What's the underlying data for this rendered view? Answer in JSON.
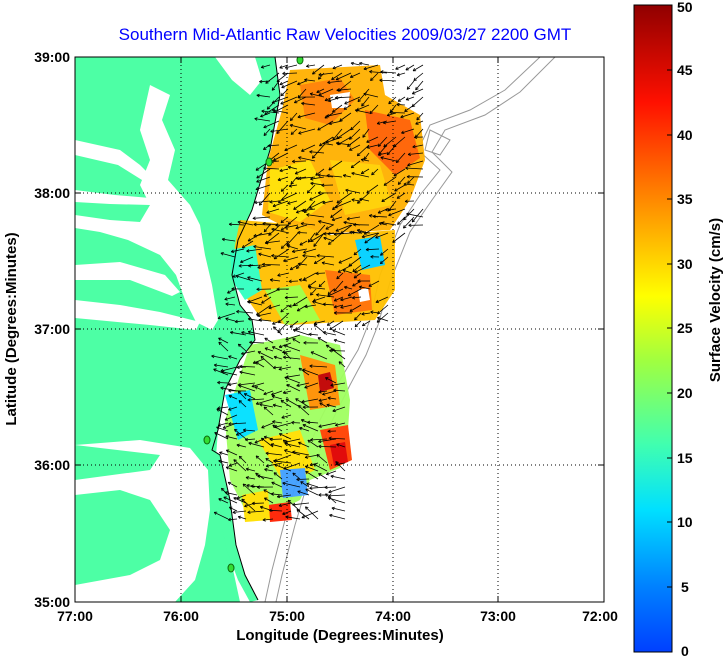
{
  "title": "Southern Mid-Atlantic Raw Velocities 2009/03/27 2200 GMT",
  "x_axis": {
    "label": "Longitude (Degrees:Minutes)",
    "ticks": [
      "77:00",
      "76:00",
      "75:00",
      "74:00",
      "73:00",
      "72:00"
    ],
    "range": [
      -77,
      -72
    ]
  },
  "y_axis": {
    "label": "Latitude (Degrees:Minutes)",
    "ticks": [
      "39:00",
      "38:00",
      "37:00",
      "36:00",
      "35:00"
    ],
    "range": [
      35,
      39
    ]
  },
  "colorbar": {
    "label": "Surface Velocity (cm/s)",
    "ticks": [
      "0",
      "5",
      "10",
      "15",
      "20",
      "25",
      "30",
      "35",
      "40",
      "45",
      "50"
    ],
    "range": [
      0,
      50
    ],
    "colors": [
      "#0000c8",
      "#0060ff",
      "#00c8ff",
      "#30ffd0",
      "#90ff60",
      "#f0ff00",
      "#ffb000",
      "#ff5000",
      "#e00000",
      "#900000"
    ]
  },
  "colors": {
    "land": "#4dffa5",
    "water": "#ffffff",
    "title": "#0000ff",
    "contour": "#999999",
    "arrow": "#000000",
    "station": "#33dd33"
  },
  "grid": "dotted"
}
